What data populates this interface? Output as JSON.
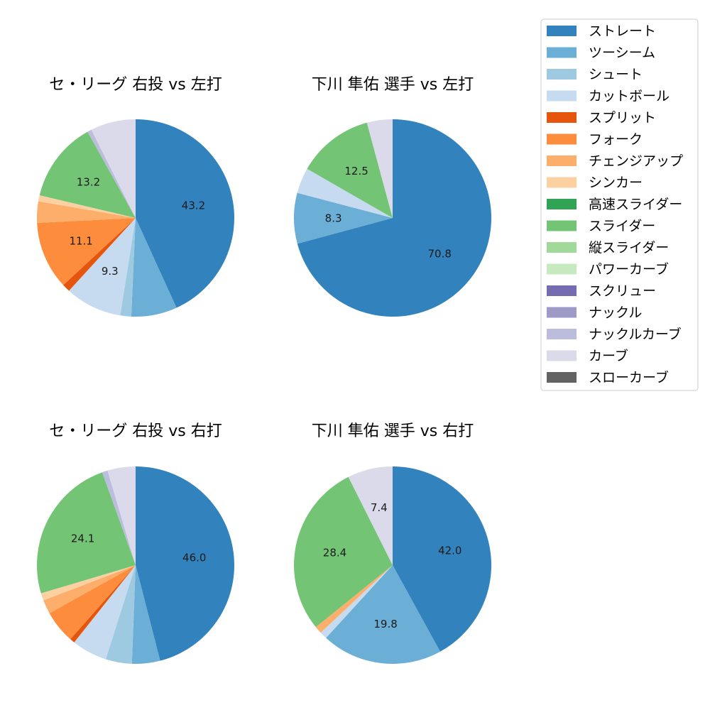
{
  "legend": {
    "items": [
      {
        "label": "ストレート",
        "color": "#3182bd"
      },
      {
        "label": "ツーシーム",
        "color": "#6baed6"
      },
      {
        "label": "シュート",
        "color": "#9ecae1"
      },
      {
        "label": "カットボール",
        "color": "#c6dbef"
      },
      {
        "label": "スプリット",
        "color": "#e6550d"
      },
      {
        "label": "フォーク",
        "color": "#fd8d3c"
      },
      {
        "label": "チェンジアップ",
        "color": "#fdae6b"
      },
      {
        "label": "シンカー",
        "color": "#fdd0a2"
      },
      {
        "label": "高速スライダー",
        "color": "#31a354"
      },
      {
        "label": "スライダー",
        "color": "#74c476"
      },
      {
        "label": "縦スライダー",
        "color": "#a1d99b"
      },
      {
        "label": "パワーカーブ",
        "color": "#c7e9c0"
      },
      {
        "label": "スクリュー",
        "color": "#756bb1"
      },
      {
        "label": "ナックル",
        "color": "#9e9ac8"
      },
      {
        "label": "ナックルカーブ",
        "color": "#bcbddc"
      },
      {
        "label": "カーブ",
        "color": "#dadaeb"
      },
      {
        "label": "スローカーブ",
        "color": "#636363"
      }
    ]
  },
  "chart_data": [
    {
      "type": "pie",
      "title": "セ・リーグ 右投 vs 左打",
      "slices": [
        {
          "label": "ストレート",
          "value": 43.2,
          "shown": "43.2"
        },
        {
          "label": "ツーシーム",
          "value": 7.5,
          "shown": ""
        },
        {
          "label": "シュート",
          "value": 1.8,
          "shown": ""
        },
        {
          "label": "カットボール",
          "value": 9.3,
          "shown": "9.3"
        },
        {
          "label": "スプリット",
          "value": 1.3,
          "shown": ""
        },
        {
          "label": "フォーク",
          "value": 11.1,
          "shown": "11.1"
        },
        {
          "label": "チェンジアップ",
          "value": 3.5,
          "shown": ""
        },
        {
          "label": "シンカー",
          "value": 1.0,
          "shown": ""
        },
        {
          "label": "スライダー",
          "value": 13.2,
          "shown": "13.2"
        },
        {
          "label": "ナックルカーブ",
          "value": 0.7,
          "shown": ""
        },
        {
          "label": "カーブ",
          "value": 7.4,
          "shown": ""
        }
      ]
    },
    {
      "type": "pie",
      "title": "下川 隼佑 選手 vs 左打",
      "slices": [
        {
          "label": "ストレート",
          "value": 70.8,
          "shown": "70.8"
        },
        {
          "label": "ツーシーム",
          "value": 8.3,
          "shown": "8.3"
        },
        {
          "label": "カットボール",
          "value": 4.2,
          "shown": ""
        },
        {
          "label": "スライダー",
          "value": 12.5,
          "shown": "12.5"
        },
        {
          "label": "カーブ",
          "value": 4.2,
          "shown": ""
        }
      ]
    },
    {
      "type": "pie",
      "title": "セ・リーグ 右投 vs 右打",
      "slices": [
        {
          "label": "ストレート",
          "value": 46.0,
          "shown": "46.0"
        },
        {
          "label": "ツーシーム",
          "value": 4.6,
          "shown": ""
        },
        {
          "label": "シュート",
          "value": 4.3,
          "shown": ""
        },
        {
          "label": "カットボール",
          "value": 5.8,
          "shown": ""
        },
        {
          "label": "スプリット",
          "value": 0.8,
          "shown": ""
        },
        {
          "label": "フォーク",
          "value": 5.4,
          "shown": ""
        },
        {
          "label": "チェンジアップ",
          "value": 2.3,
          "shown": ""
        },
        {
          "label": "シンカー",
          "value": 1.2,
          "shown": ""
        },
        {
          "label": "スライダー",
          "value": 24.1,
          "shown": "24.1"
        },
        {
          "label": "ナックルカーブ",
          "value": 0.9,
          "shown": ""
        },
        {
          "label": "カーブ",
          "value": 4.6,
          "shown": ""
        }
      ]
    },
    {
      "type": "pie",
      "title": "下川 隼佑 選手 vs 右打",
      "slices": [
        {
          "label": "ストレート",
          "value": 42.0,
          "shown": "42.0"
        },
        {
          "label": "ツーシーム",
          "value": 19.8,
          "shown": "19.8"
        },
        {
          "label": "カットボール",
          "value": 1.2,
          "shown": ""
        },
        {
          "label": "チェンジアップ",
          "value": 1.2,
          "shown": ""
        },
        {
          "label": "スライダー",
          "value": 28.4,
          "shown": "28.4"
        },
        {
          "label": "カーブ",
          "value": 7.4,
          "shown": "7.4"
        }
      ]
    }
  ]
}
